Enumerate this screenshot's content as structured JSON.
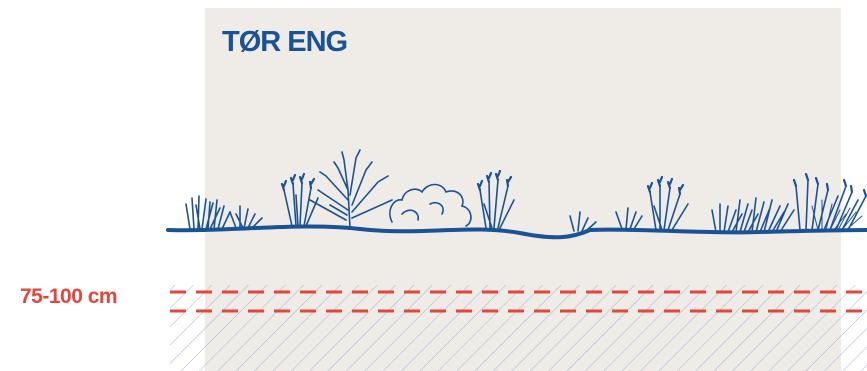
{
  "title": "TØR ENG",
  "depth_label": "75-100 cm",
  "colors": {
    "panel": "#efebe6",
    "plants": "#1a5296",
    "hatch": "#9fb2d6",
    "depth_line": "#e2473a"
  },
  "icons": [
    "grass-tuft-icon",
    "bare-shrub-icon",
    "curly-shrub-icon",
    "flowering-grass-icon"
  ]
}
